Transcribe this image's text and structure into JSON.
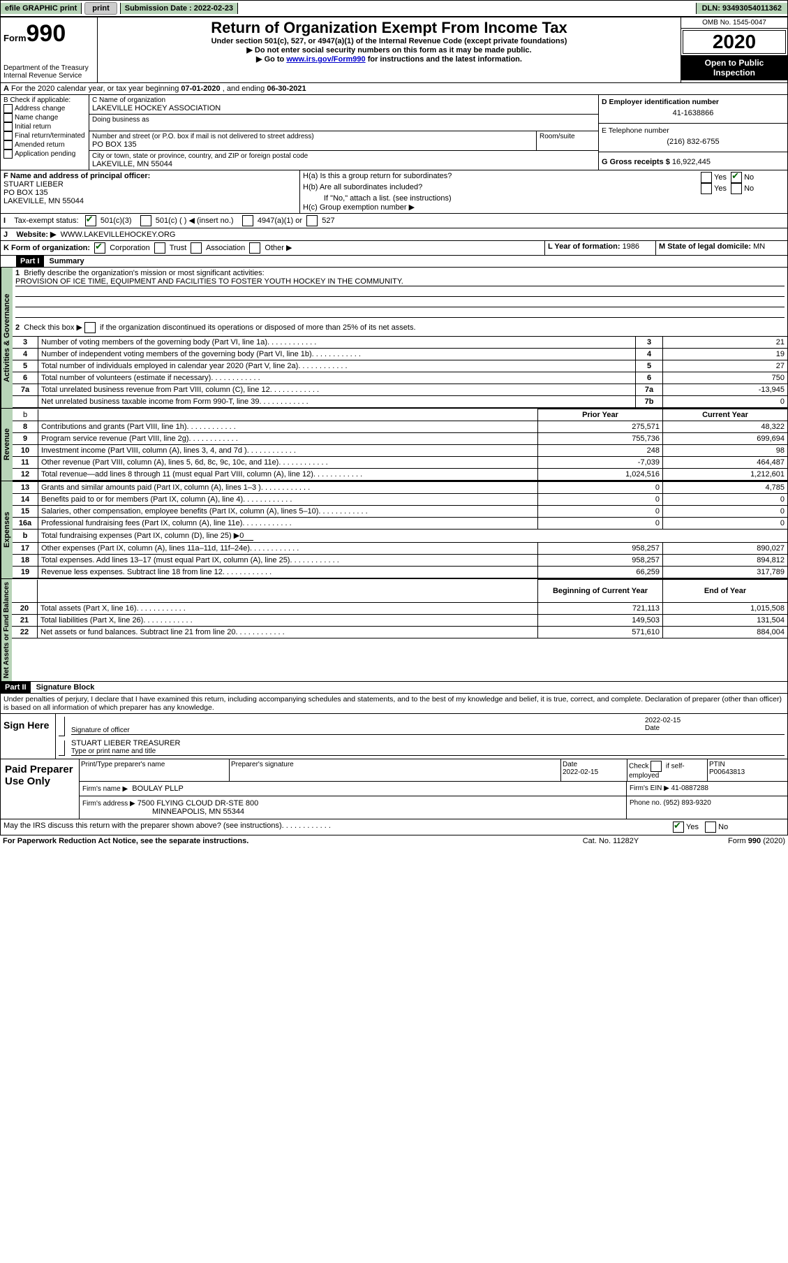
{
  "top": {
    "efile": "efile GRAPHIC print",
    "submission_label": "Submission Date :",
    "submission_date": "2022-02-23",
    "dln_label": "DLN:",
    "dln": "93493054011362"
  },
  "header": {
    "form_word": "Form",
    "form_num": "990",
    "dept": "Department of the Treasury\nInternal Revenue Service",
    "title": "Return of Organization Exempt From Income Tax",
    "sub1": "Under section 501(c), 527, or 4947(a)(1) of the Internal Revenue Code (except private foundations)",
    "sub2": "Do not enter social security numbers on this form as it may be made public.",
    "sub3_pre": "Go to ",
    "sub3_link": "www.irs.gov/Form990",
    "sub3_post": " for instructions and the latest information.",
    "omb": "OMB No. 1545-0047",
    "year": "2020",
    "open": "Open to Public Inspection"
  },
  "A": {
    "text": "For the 2020 calendar year, or tax year beginning ",
    "begin": "07-01-2020",
    "mid": " , and ending ",
    "end": "06-30-2021"
  },
  "B": {
    "label": "B Check if applicable:",
    "opts": [
      "Address change",
      "Name change",
      "Initial return",
      "Final return/terminated",
      "Amended return",
      "Application pending"
    ]
  },
  "C": {
    "name_label": "C Name of organization",
    "name": "LAKEVILLE HOCKEY ASSOCIATION",
    "dba_label": "Doing business as",
    "dba": "",
    "addr_label": "Number and street (or P.O. box if mail is not delivered to street address)",
    "room_label": "Room/suite",
    "addr": "PO BOX 135",
    "city_label": "City or town, state or province, country, and ZIP or foreign postal code",
    "city": "LAKEVILLE, MN  55044"
  },
  "D": {
    "label": "D Employer identification number",
    "value": "41-1638866"
  },
  "E": {
    "label": "E Telephone number",
    "value": "(216) 832-6755"
  },
  "G": {
    "label": "G Gross receipts $",
    "value": "16,922,445"
  },
  "F": {
    "label": "F  Name and address of principal officer:",
    "name": "STUART LIEBER",
    "addr": "PO BOX 135",
    "city": "LAKEVILLE, MN  55044"
  },
  "H": {
    "a": "H(a)  Is this a group return for subordinates?",
    "b": "H(b)  Are all subordinates included?",
    "b_note": "If \"No,\" attach a list. (see instructions)",
    "c": "H(c)  Group exemption number ▶",
    "yes": "Yes",
    "no": "No"
  },
  "I": {
    "label": "Tax-exempt status:",
    "o1": "501(c)(3)",
    "o2": "501(c) (   ) ◀ (insert no.)",
    "o3": "4947(a)(1) or",
    "o4": "527"
  },
  "J": {
    "label": "Website: ▶",
    "value": "WWW.LAKEVILLEHOCKEY.ORG"
  },
  "K": {
    "label": "K Form of organization:",
    "o1": "Corporation",
    "o2": "Trust",
    "o3": "Association",
    "o4": "Other ▶"
  },
  "L": {
    "label": "L Year of formation:",
    "value": "1986"
  },
  "M": {
    "label": "M State of legal domicile:",
    "value": "MN"
  },
  "part1": {
    "hdr": "Part I",
    "title": "Summary",
    "q1": "Briefly describe the organization's mission or most significant activities:",
    "mission": "PROVISION OF ICE TIME, EQUIPMENT AND FACILITIES TO FOSTER YOUTH HOCKEY IN THE COMMUNITY.",
    "q2": "Check this box ▶        if the organization discontinued its operations or disposed of more than 25% of its net assets.",
    "lines": [
      {
        "n": "3",
        "t": "Number of voting members of the governing body (Part VI, line 1a)",
        "b": "3",
        "v": "21"
      },
      {
        "n": "4",
        "t": "Number of independent voting members of the governing body (Part VI, line 1b)",
        "b": "4",
        "v": "19"
      },
      {
        "n": "5",
        "t": "Total number of individuals employed in calendar year 2020 (Part V, line 2a)",
        "b": "5",
        "v": "27"
      },
      {
        "n": "6",
        "t": "Total number of volunteers (estimate if necessary)",
        "b": "6",
        "v": "750"
      },
      {
        "n": "7a",
        "t": "Total unrelated business revenue from Part VIII, column (C), line 12",
        "b": "7a",
        "v": "-13,945"
      },
      {
        "n": "",
        "t": "Net unrelated business taxable income from Form 990-T, line 39",
        "b": "7b",
        "v": "0"
      }
    ],
    "col_prior": "Prior Year",
    "col_curr": "Current Year",
    "rev": [
      {
        "n": "8",
        "t": "Contributions and grants (Part VIII, line 1h)",
        "p": "275,571",
        "c": "48,322"
      },
      {
        "n": "9",
        "t": "Program service revenue (Part VIII, line 2g)",
        "p": "755,736",
        "c": "699,694"
      },
      {
        "n": "10",
        "t": "Investment income (Part VIII, column (A), lines 3, 4, and 7d )",
        "p": "248",
        "c": "98"
      },
      {
        "n": "11",
        "t": "Other revenue (Part VIII, column (A), lines 5, 6d, 8c, 9c, 10c, and 11e)",
        "p": "-7,039",
        "c": "464,487"
      },
      {
        "n": "12",
        "t": "Total revenue—add lines 8 through 11 (must equal Part VIII, column (A), line 12)",
        "p": "1,024,516",
        "c": "1,212,601"
      }
    ],
    "exp": [
      {
        "n": "13",
        "t": "Grants and similar amounts paid (Part IX, column (A), lines 1–3 )",
        "p": "0",
        "c": "4,785"
      },
      {
        "n": "14",
        "t": "Benefits paid to or for members (Part IX, column (A), line 4)",
        "p": "0",
        "c": "0"
      },
      {
        "n": "15",
        "t": "Salaries, other compensation, employee benefits (Part IX, column (A), lines 5–10)",
        "p": "0",
        "c": "0"
      },
      {
        "n": "16a",
        "t": "Professional fundraising fees (Part IX, column (A), line 11e)",
        "p": "0",
        "c": "0"
      },
      {
        "n": "b",
        "t": "Total fundraising expenses (Part IX, column (D), line 25) ▶",
        "p": "",
        "c": "",
        "extra": "0"
      },
      {
        "n": "17",
        "t": "Other expenses (Part IX, column (A), lines 11a–11d, 11f–24e)",
        "p": "958,257",
        "c": "890,027"
      },
      {
        "n": "18",
        "t": "Total expenses. Add lines 13–17 (must equal Part IX, column (A), line 25)",
        "p": "958,257",
        "c": "894,812"
      },
      {
        "n": "19",
        "t": "Revenue less expenses. Subtract line 18 from line 12",
        "p": "66,259",
        "c": "317,789"
      }
    ],
    "col_beg": "Beginning of Current Year",
    "col_end": "End of Year",
    "net": [
      {
        "n": "20",
        "t": "Total assets (Part X, line 16)",
        "p": "721,113",
        "c": "1,015,508"
      },
      {
        "n": "21",
        "t": "Total liabilities (Part X, line 26)",
        "p": "149,503",
        "c": "131,504"
      },
      {
        "n": "22",
        "t": "Net assets or fund balances. Subtract line 21 from line 20",
        "p": "571,610",
        "c": "884,004"
      }
    ],
    "sidelabels": {
      "gov": "Activities & Governance",
      "rev": "Revenue",
      "exp": "Expenses",
      "net": "Net Assets or Fund Balances"
    }
  },
  "part2": {
    "hdr": "Part II",
    "title": "Signature Block",
    "perjury": "Under penalties of perjury, I declare that I have examined this return, including accompanying schedules and statements, and to the best of my knowledge and belief, it is true, correct, and complete. Declaration of preparer (other than officer) is based on all information of which preparer has any knowledge."
  },
  "sign": {
    "here": "Sign Here",
    "sig_label": "Signature of officer",
    "date_label": "Date",
    "date": "2022-02-15",
    "name": "STUART LIEBER  TREASURER",
    "name_label": "Type or print name and title"
  },
  "prep": {
    "title": "Paid Preparer Use Only",
    "c1": "Print/Type preparer's name",
    "c2": "Preparer's signature",
    "c3": "Date",
    "c3v": "2022-02-15",
    "c4": "Check        if self-employed",
    "c5": "PTIN",
    "c5v": "P00643813",
    "firm_label": "Firm's name    ▶",
    "firm": "BOULAY PLLP",
    "ein_label": "Firm's EIN ▶",
    "ein": "41-0887288",
    "addr_label": "Firm's address ▶",
    "addr1": "7500 FLYING CLOUD DR-STE 800",
    "addr2": "MINNEAPOLIS, MN  55344",
    "phone_label": "Phone no.",
    "phone": "(952) 893-9320"
  },
  "footer": {
    "discuss": "May the IRS discuss this return with the preparer shown above? (see instructions)",
    "yes": "Yes",
    "no": "No",
    "pra": "For Paperwork Reduction Act Notice, see the separate instructions.",
    "cat": "Cat. No. 11282Y",
    "form": "Form 990 (2020)"
  }
}
